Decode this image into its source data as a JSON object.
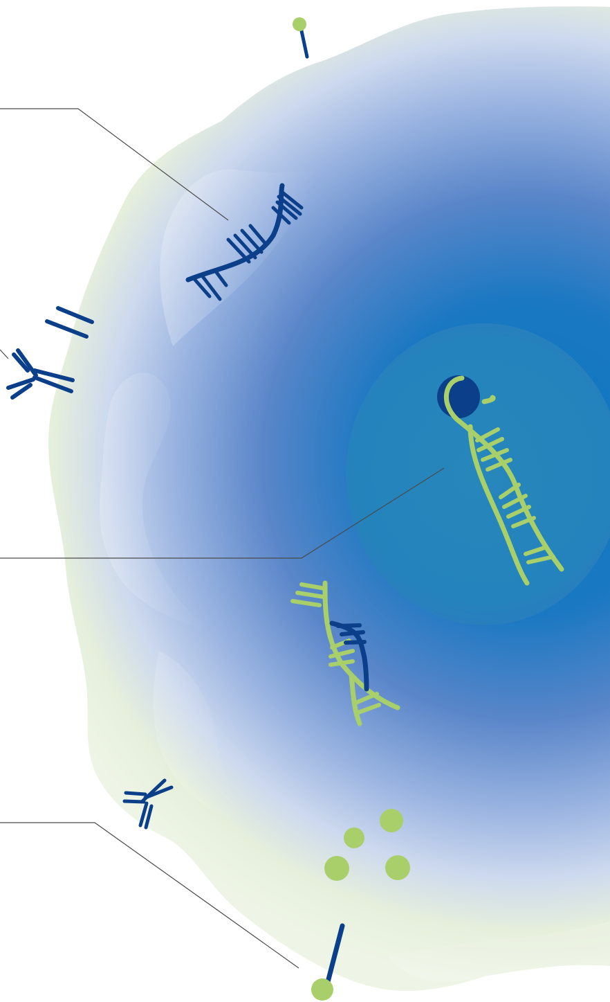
{
  "colors": {
    "background": "#ffffff",
    "membrane_outer": "#e6f1dc",
    "membrane_mid": "#a9bde3",
    "cytoplasm": "#5f86c9",
    "cytoplasm_deep": "#1177c0",
    "nucleus": "#2a88b9",
    "dark_molecule": "#0b3f8a",
    "light_molecule": "#a9cf6a",
    "leader_line": "#4a4a4a"
  },
  "icons": [
    "cell-illustration",
    "nucleus",
    "dna-double-helix-icon",
    "antibody-icon",
    "surface-receptor-icon",
    "molecule-dot-icon"
  ],
  "leader_lines": [
    {
      "target": "dna-in-membrane-region"
    },
    {
      "target": "dna-in-nucleus"
    },
    {
      "target": "surface-receptor-bottom"
    }
  ]
}
